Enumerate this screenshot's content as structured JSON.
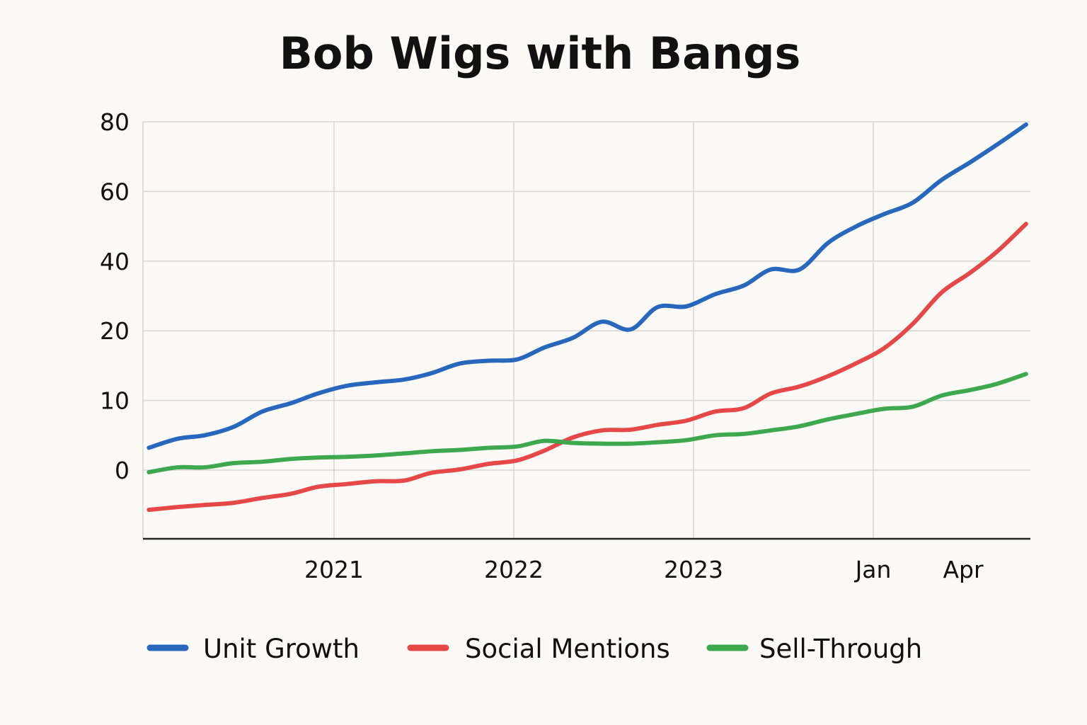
{
  "chart_data": {
    "type": "line",
    "title": "Bob Wigs with Bangs",
    "xlabel": "",
    "ylabel": "",
    "grid": true,
    "legend_position": "bottom",
    "y_ticks": [
      0,
      10,
      20,
      40,
      60,
      80
    ],
    "y_tick_labels": [
      "0",
      "10",
      "20",
      "40",
      "60",
      "80"
    ],
    "x_ticks": [
      {
        "label": "2021",
        "at": 2021.0,
        "gridline": true
      },
      {
        "label": "2022",
        "at": 2022.0,
        "gridline": true
      },
      {
        "label": "2023",
        "at": 2023.0,
        "gridline": true
      },
      {
        "label": "Jan",
        "at": 2024.0,
        "gridline": true
      },
      {
        "label": "Apr",
        "at": 2024.5,
        "gridline": false
      }
    ],
    "xlim": [
      2019.94,
      2024.88
    ],
    "ylim": [
      -9.8,
      80
    ],
    "x": [
      2019.97,
      2020.13,
      2020.28,
      2020.44,
      2020.6,
      2020.76,
      2020.91,
      2021.07,
      2021.23,
      2021.39,
      2021.54,
      2021.7,
      2021.86,
      2022.02,
      2022.17,
      2022.33,
      2022.49,
      2022.65,
      2022.8,
      2022.96,
      2023.12,
      2023.28,
      2023.43,
      2023.59,
      2023.75,
      2023.91,
      2024.06,
      2024.22,
      2024.38,
      2024.54,
      2024.69,
      2024.85
    ],
    "series": [
      {
        "name": "Unit Growth",
        "color": "#2767bd",
        "values": [
          3.2,
          4.5,
          5.0,
          6.2,
          8.4,
          9.6,
          11.0,
          12.1,
          12.6,
          13.0,
          13.9,
          15.3,
          15.7,
          15.9,
          17.6,
          19.0,
          22.6,
          20.4,
          26.8,
          27.0,
          30.5,
          33.0,
          37.6,
          37.6,
          45.3,
          50.1,
          53.5,
          56.8,
          63.3,
          68.4,
          73.5,
          79.2
        ]
      },
      {
        "name": "Social Mentions",
        "color": "#e64848",
        "values": [
          -5.7,
          -5.3,
          -5.0,
          -4.7,
          -4.0,
          -3.4,
          -2.4,
          -2.0,
          -1.6,
          -1.5,
          -0.4,
          0.1,
          0.9,
          1.4,
          2.8,
          4.7,
          5.7,
          5.8,
          6.5,
          7.1,
          8.4,
          8.9,
          11.0,
          12.0,
          13.5,
          15.4,
          17.5,
          22.0,
          31.0,
          36.7,
          42.8,
          50.7
        ]
      },
      {
        "name": "Sell-Through",
        "color": "#3ea84e",
        "values": [
          -0.3,
          0.4,
          0.4,
          1.0,
          1.2,
          1.6,
          1.8,
          1.9,
          2.1,
          2.4,
          2.7,
          2.9,
          3.2,
          3.4,
          4.2,
          3.9,
          3.8,
          3.8,
          4.0,
          4.3,
          5.0,
          5.2,
          5.7,
          6.3,
          7.3,
          8.1,
          8.8,
          9.1,
          10.7,
          11.5,
          12.4,
          13.8
        ]
      }
    ]
  }
}
